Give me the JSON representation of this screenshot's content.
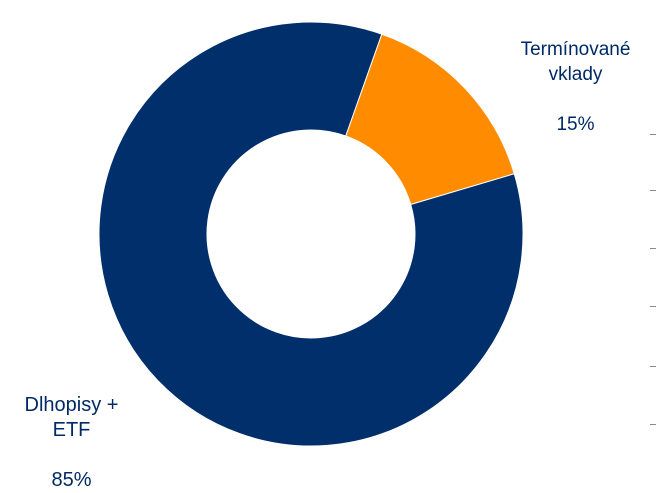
{
  "chart_data": {
    "type": "pie",
    "donut": true,
    "title": "",
    "slices": [
      {
        "label": "Dlhopisy +\nETF",
        "value": 85,
        "value_label": "85%",
        "color": "#002F6C"
      },
      {
        "label": "Termínované\nvklady",
        "value": 15,
        "value_label": "15%",
        "color": "#FF8C00"
      }
    ]
  }
}
